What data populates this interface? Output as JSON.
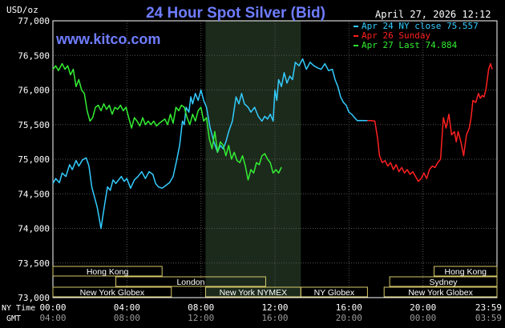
{
  "chart_data": {
    "type": "line",
    "title": "24 Hour Spot Silver (Bid)",
    "watermark": "www.kitco.com",
    "unit_label": "USD/oz",
    "timestamp": "April 27, 2026 12:12",
    "ylim": [
      73.0,
      77.0
    ],
    "y_ticks": [
      "77,000",
      "76,500",
      "76,000",
      "75,500",
      "75,000",
      "74,500",
      "74,000",
      "73,500",
      "73,000"
    ],
    "y_tick_values": [
      77.0,
      76.5,
      76.0,
      75.5,
      75.0,
      74.5,
      74.0,
      73.5,
      73.0
    ],
    "x_row_label_ny": "NY Time",
    "x_row_label_gmt": "GMT",
    "x_ticks_ny": [
      "00:00",
      "04:00",
      "08:00",
      "12:00",
      "16:00",
      "20:00",
      "23:59"
    ],
    "x_ticks_gmt": [
      "04:00",
      "08:00",
      "12:00",
      "16:00",
      "20:00",
      "00:00",
      "03:59"
    ],
    "x_tick_hours": [
      0,
      4,
      8,
      12,
      16,
      20,
      24
    ],
    "legend": [
      {
        "label": "Apr 24 NY close 75.557",
        "color": "#33ccff"
      },
      {
        "label": "Apr 26 Sunday",
        "color": "#ff2020"
      },
      {
        "label": "Apr 27 Last 74.884",
        "color": "#33ee33"
      }
    ],
    "series": [
      {
        "name": "Apr 24 NY close 75.557",
        "color": "#33ccff",
        "x": [
          0,
          0.15,
          0.35,
          0.5,
          0.7,
          0.9,
          1.05,
          1.25,
          1.4,
          1.6,
          1.8,
          1.95,
          2.1,
          2.2,
          2.4,
          2.6,
          2.8,
          2.95,
          3.1,
          3.25,
          3.4,
          3.55,
          3.7,
          3.85,
          4.0,
          4.2,
          4.4,
          4.6,
          4.8,
          5.0,
          5.2,
          5.4,
          5.55,
          5.7,
          5.9,
          6.1,
          6.3,
          6.5,
          6.7,
          6.85,
          7.0,
          7.1,
          7.2,
          7.35,
          7.45,
          7.55,
          7.7,
          7.85,
          8.0,
          8.15,
          8.3,
          8.5,
          8.7,
          8.9,
          9.05,
          9.2,
          9.35,
          9.5,
          9.7,
          9.9,
          10.05,
          10.2,
          10.35,
          10.55,
          10.7,
          10.9,
          11.1,
          11.3,
          11.45,
          11.6,
          11.75,
          11.9,
          12.0,
          12.1,
          12.2,
          12.35,
          12.5,
          12.65,
          12.8,
          12.95,
          13.1,
          13.3,
          13.5,
          13.7,
          13.9,
          14.1,
          14.3,
          14.5,
          14.7,
          14.9,
          15.1,
          15.25,
          15.4,
          15.55,
          15.7,
          15.85,
          16.0,
          16.15,
          16.3,
          16.45,
          16.6,
          16.85,
          17.0
        ],
        "values": [
          74.65,
          74.72,
          74.66,
          74.8,
          74.75,
          74.92,
          74.85,
          74.98,
          74.9,
          74.99,
          75.02,
          74.9,
          74.6,
          74.5,
          74.3,
          74.0,
          74.35,
          74.6,
          74.55,
          74.7,
          74.65,
          74.7,
          74.75,
          74.68,
          74.72,
          74.58,
          74.7,
          74.75,
          74.82,
          74.72,
          74.82,
          74.78,
          74.65,
          74.6,
          74.58,
          74.62,
          74.66,
          74.75,
          75.0,
          75.2,
          75.55,
          75.5,
          75.75,
          75.68,
          75.9,
          75.8,
          75.95,
          75.85,
          76.0,
          75.85,
          75.75,
          75.45,
          75.25,
          75.1,
          75.2,
          75.15,
          75.25,
          75.4,
          75.55,
          75.9,
          75.8,
          75.95,
          75.8,
          75.75,
          75.68,
          75.75,
          75.62,
          75.55,
          75.62,
          75.58,
          75.65,
          75.55,
          76.0,
          75.85,
          76.15,
          76.05,
          76.25,
          76.1,
          76.2,
          76.15,
          76.4,
          76.35,
          76.45,
          76.3,
          76.4,
          76.35,
          76.32,
          76.3,
          76.38,
          76.28,
          76.3,
          76.15,
          76.05,
          75.9,
          75.82,
          75.78,
          75.68,
          75.65,
          75.6,
          75.557,
          75.56,
          75.557,
          75.557
        ]
      },
      {
        "name": "Apr 26 Sunday",
        "color": "#ff2020",
        "x": [
          17.0,
          17.2,
          17.4,
          17.55,
          17.65,
          17.8,
          17.95,
          18.1,
          18.25,
          18.4,
          18.55,
          18.7,
          18.85,
          19.0,
          19.15,
          19.3,
          19.45,
          19.6,
          19.75,
          19.9,
          20.05,
          20.2,
          20.35,
          20.5,
          20.65,
          20.8,
          20.95,
          21.1,
          21.25,
          21.4,
          21.55,
          21.7,
          21.8,
          21.9,
          22.05,
          22.2,
          22.35,
          22.5,
          22.6,
          22.7,
          22.85,
          23.0,
          23.1,
          23.2,
          23.3,
          23.4,
          23.55,
          23.65,
          23.75
        ],
        "values": [
          75.557,
          75.557,
          75.55,
          75.3,
          75.05,
          74.95,
          74.98,
          74.9,
          74.95,
          74.85,
          74.92,
          74.82,
          74.88,
          74.8,
          74.85,
          74.78,
          74.82,
          74.75,
          74.68,
          74.72,
          74.8,
          74.72,
          74.85,
          74.9,
          74.88,
          74.95,
          75.0,
          75.6,
          75.45,
          75.65,
          75.35,
          75.4,
          75.25,
          75.4,
          75.25,
          75.05,
          75.35,
          75.45,
          75.6,
          75.85,
          75.82,
          75.95,
          75.88,
          75.92,
          75.9,
          76.0,
          76.3,
          76.38,
          76.3
        ]
      },
      {
        "name": "Apr 27 Last 74.884",
        "color": "#33ee33",
        "x": [
          0,
          0.15,
          0.3,
          0.5,
          0.65,
          0.8,
          0.95,
          1.1,
          1.25,
          1.4,
          1.55,
          1.7,
          1.85,
          2.0,
          2.15,
          2.3,
          2.45,
          2.6,
          2.75,
          2.9,
          3.05,
          3.2,
          3.35,
          3.5,
          3.65,
          3.8,
          3.95,
          4.1,
          4.25,
          4.4,
          4.55,
          4.7,
          4.85,
          5.0,
          5.15,
          5.3,
          5.45,
          5.6,
          5.75,
          5.9,
          6.05,
          6.2,
          6.35,
          6.5,
          6.65,
          6.8,
          6.95,
          7.1,
          7.25,
          7.4,
          7.55,
          7.7,
          7.85,
          8.0,
          8.15,
          8.3,
          8.45,
          8.6,
          8.75,
          8.9,
          9.05,
          9.2,
          9.35,
          9.5,
          9.65,
          9.8,
          9.95,
          10.1,
          10.25,
          10.4,
          10.55,
          10.7,
          10.85,
          11.0,
          11.15,
          11.3,
          11.45,
          11.6,
          11.75,
          11.9,
          12.05,
          12.2,
          12.35
        ],
        "values": [
          76.3,
          76.35,
          76.28,
          76.38,
          76.3,
          76.35,
          76.22,
          76.3,
          76.05,
          76.15,
          76.0,
          75.95,
          75.7,
          75.55,
          75.6,
          75.75,
          75.78,
          75.7,
          75.8,
          75.72,
          75.78,
          75.65,
          75.75,
          75.72,
          75.78,
          75.7,
          75.75,
          75.6,
          75.45,
          75.6,
          75.55,
          75.48,
          75.6,
          75.5,
          75.55,
          75.5,
          75.55,
          75.48,
          75.52,
          75.55,
          75.58,
          75.5,
          75.65,
          75.52,
          75.75,
          75.7,
          75.78,
          75.75,
          75.6,
          75.5,
          75.65,
          75.55,
          75.7,
          75.75,
          75.55,
          75.6,
          75.3,
          75.15,
          75.4,
          75.1,
          75.25,
          75.2,
          75.05,
          75.2,
          75.0,
          75.1,
          74.98,
          74.95,
          75.05,
          74.9,
          74.7,
          74.85,
          74.8,
          74.95,
          74.92,
          75.05,
          75.08,
          75.0,
          74.95,
          74.8,
          74.85,
          74.8,
          74.884
        ]
      }
    ],
    "shaded_region": {
      "label": "New York NYMEX",
      "start_hour": 8.25,
      "end_hour": 13.4
    },
    "sessions": [
      {
        "label": "Hong Kong",
        "start": 0.0,
        "end": 5.9,
        "row": 1
      },
      {
        "label": "Hong Kong",
        "start": 20.6,
        "end": 24.0,
        "row": 1
      },
      {
        "label": "London",
        "start": 3.4,
        "end": 11.5,
        "row": 2
      },
      {
        "label": "Sydney",
        "start": 18.2,
        "end": 24.0,
        "row": 2
      },
      {
        "label": "New York Globex",
        "start": 0.0,
        "end": 6.4,
        "row": 3
      },
      {
        "label": "New York NYMEX",
        "start": 8.25,
        "end": 13.4,
        "row": 3
      },
      {
        "label": "NY Globex",
        "start": 13.4,
        "end": 17.0,
        "row": 3
      },
      {
        "label": "New York Globex",
        "start": 17.9,
        "end": 24.0,
        "row": 3
      }
    ]
  }
}
